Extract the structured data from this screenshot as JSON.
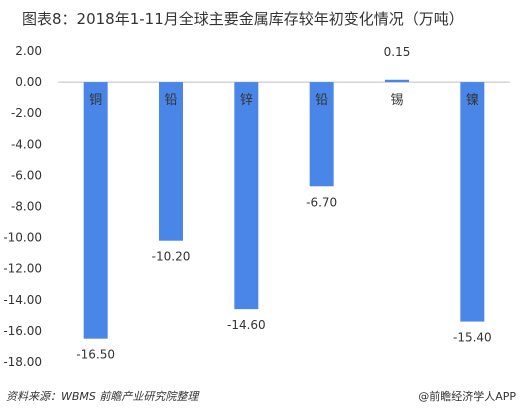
{
  "title": "图表8：2018年1-11月全球主要金属库存较年初变化情况（万吨）",
  "source": "资料来源：WBMS  前瞻产业研究院整理",
  "credit": "@前瞻经济学人APP",
  "chart_data": {
    "type": "bar",
    "title": "图表8：2018年1-11月全球主要金属库存较年初变化情况（万吨）",
    "categories": [
      "铜",
      "铅",
      "锌",
      "铅",
      "锡",
      "镍"
    ],
    "values": [
      -16.5,
      -10.2,
      -14.6,
      -6.7,
      0.15,
      -15.4
    ],
    "value_labels": [
      "-16.50",
      "-10.20",
      "-14.60",
      "-6.70",
      "0.15",
      "-15.40"
    ],
    "ylim": [
      -18,
      2
    ],
    "yticks": [
      2,
      0,
      -2,
      -4,
      -6,
      -8,
      -10,
      -12,
      -14,
      -16,
      -18
    ],
    "ytick_labels": [
      "2.00",
      "0.00",
      "-2.00",
      "-4.00",
      "-6.00",
      "-8.00",
      "-10.00",
      "-12.00",
      "-14.00",
      "-16.00",
      "-18.00"
    ],
    "grid": false,
    "bar_color": "#4a86e8"
  }
}
